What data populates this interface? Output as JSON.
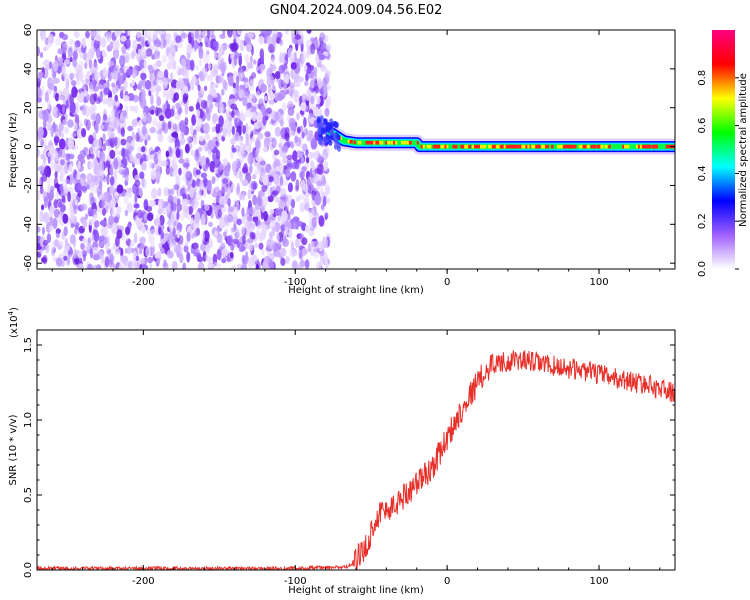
{
  "figure": {
    "title": "GN04.2024.009.04.56.E02"
  },
  "chart_data": [
    {
      "type": "heatmap",
      "title": "GN04.2024.009.04.56.E02",
      "xlabel": "Height of straight line (km)",
      "ylabel": "Frequency (Hz)",
      "xlim": [
        -270,
        150
      ],
      "ylim": [
        -63,
        60
      ],
      "xticks": [
        -200,
        -100,
        0,
        100
      ],
      "xtick_labels": [
        "-200",
        "-100",
        "0",
        "100"
      ],
      "yticks": [
        -60,
        -40,
        -20,
        0,
        20,
        40,
        60
      ],
      "ytick_labels": [
        "-60",
        "-40",
        "-20",
        "0",
        "20",
        "40",
        "60"
      ],
      "noise_region_x": [
        -270,
        -78
      ],
      "signal_band": [
        {
          "x": -78,
          "y": 8
        },
        {
          "x": -68,
          "y": 3
        },
        {
          "x": -60,
          "y": 2
        },
        {
          "x": -20,
          "y": 2
        },
        {
          "x": -18,
          "y": 0
        },
        {
          "x": 150,
          "y": 0
        }
      ],
      "colorbar": {
        "label": "Normalized spectral amplitude",
        "range": [
          0,
          1
        ],
        "ticks": [
          0.0,
          0.2,
          0.4,
          0.6,
          0.8
        ],
        "tick_labels": [
          "0.0",
          "0.2",
          "0.4",
          "0.6",
          "0.8"
        ],
        "colors": [
          "#ffffff",
          "#a060ff",
          "#0000ff",
          "#00ffff",
          "#00ff00",
          "#ffff00",
          "#ff0000",
          "#ff0080"
        ]
      },
      "grid": false
    },
    {
      "type": "line",
      "xlabel": "Height of straight line (km)",
      "ylabel": "SNR (10 * v/v)",
      "yscale_label": "(x10",
      "yscale_exp": "4",
      "yscale_close": ")",
      "xlim": [
        -270,
        150
      ],
      "ylim": [
        0,
        1.6
      ],
      "xticks": [
        -200,
        -100,
        0,
        100
      ],
      "xtick_labels": [
        "-200",
        "-100",
        "0",
        "100"
      ],
      "yticks": [
        0.0,
        0.5,
        1.0,
        1.5
      ],
      "ytick_labels": [
        "0.0",
        "0.5",
        "1.0",
        "1.5"
      ],
      "color": "#e8302a",
      "series": [
        {
          "x": [
            -270,
            -200,
            -100,
            -65,
            -55,
            -45,
            -35,
            -30,
            -20,
            -10,
            0,
            10,
            20,
            30,
            50,
            70,
            90,
            110,
            130,
            150
          ],
          "y": [
            0.01,
            0.01,
            0.01,
            0.02,
            0.12,
            0.38,
            0.42,
            0.48,
            0.58,
            0.68,
            0.88,
            1.08,
            1.25,
            1.38,
            1.4,
            1.36,
            1.33,
            1.28,
            1.24,
            1.18
          ]
        }
      ],
      "grid": false
    }
  ]
}
